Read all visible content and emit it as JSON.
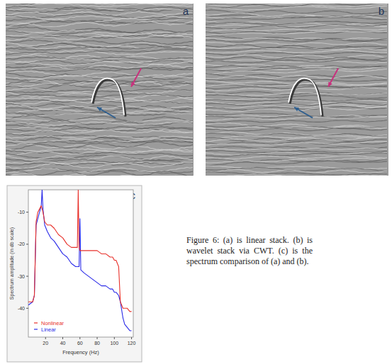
{
  "panel_labels": [
    "a",
    "b",
    "c"
  ],
  "caption": "Figure 6: (a) is linear stack. (b) is wavelet stack via CWT. (c) is the spectrum comparison of (a) and (b).",
  "chart_data": {
    "type": "line",
    "x_label": "Frequency (Hz)",
    "y_label": "Spectrum amplitude (in db scale)",
    "x": [
      0,
      5,
      7,
      9,
      11,
      13,
      15,
      16,
      17,
      19,
      22,
      26,
      30,
      35,
      40,
      45,
      50,
      55,
      57,
      58,
      59,
      60,
      61,
      65,
      70,
      75,
      80,
      85,
      90,
      95,
      98,
      100,
      101,
      102,
      105,
      107,
      110,
      112,
      115,
      118,
      120
    ],
    "series": [
      {
        "name": "Nonlinear",
        "color": "#e8302a",
        "values": [
          -38,
          -38,
          -36,
          -13,
          -10,
          -9,
          -8,
          -9,
          -10,
          -13,
          -14,
          -14,
          -15,
          -17,
          -18,
          -20,
          -21,
          -21,
          -21,
          -3,
          -21,
          -22,
          -22,
          -22,
          -22,
          -22,
          -22,
          -23,
          -23,
          -24,
          -24,
          -25,
          -25,
          -25,
          -27,
          -38,
          -40,
          -40,
          -40,
          -41,
          -41
        ]
      },
      {
        "name": "Linear",
        "color": "#2a2ae8",
        "values": [
          -39,
          -38,
          -36,
          -14,
          -12,
          -10,
          -8,
          -3,
          -9,
          -14,
          -16,
          -18,
          -19,
          -21,
          -23,
          -24,
          -26,
          -27,
          -27,
          -27,
          -27,
          -12,
          -28,
          -29,
          -30,
          -31,
          -32,
          -33,
          -33,
          -34,
          -34,
          -35,
          -35,
          -35,
          -36,
          -38,
          -43,
          -45,
          -46,
          -47,
          -47
        ]
      }
    ],
    "xlim": [
      0,
      122
    ],
    "ylim": [
      -49,
      -3
    ],
    "xticks": [
      20,
      40,
      60,
      80,
      100,
      120
    ],
    "yticks": [
      -10,
      -20,
      -30,
      -40
    ],
    "legend": "lower left",
    "grid": false
  }
}
